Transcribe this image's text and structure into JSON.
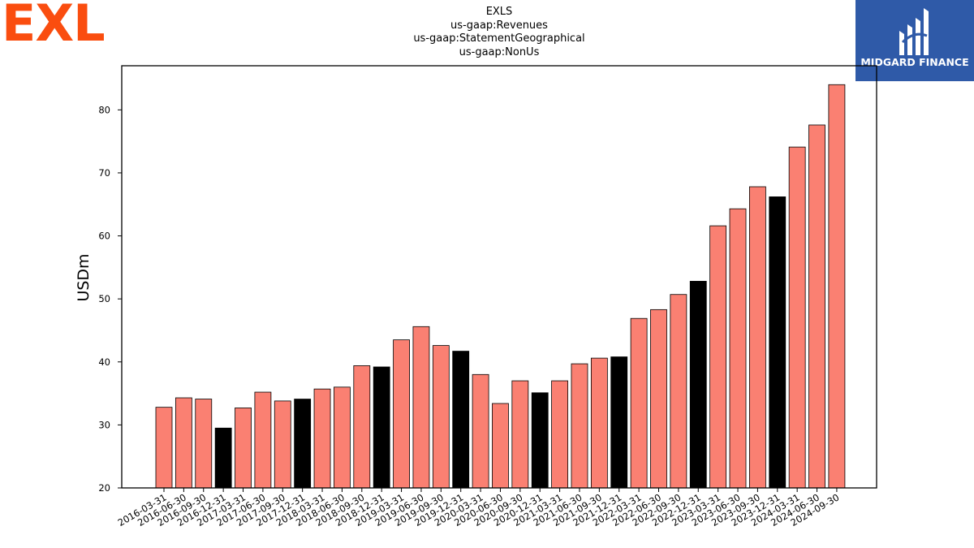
{
  "logos": {
    "left_text": "EXL",
    "right_text": "MIDGARD FINANCE"
  },
  "title_lines": [
    "EXLS",
    "us-gaap:Revenues",
    "us-gaap:StatementGeographical",
    "us-gaap:NonUs"
  ],
  "colors": {
    "bar": "#fa8072",
    "bar_q4": "#000000",
    "edge": "#000000"
  },
  "chart_data": {
    "type": "bar",
    "title": "EXLS\nus-gaap:Revenues\nus-gaap:StatementGeographical\nus-gaap:NonUs",
    "xlabel": "",
    "ylabel": "USDm",
    "ylim": [
      20,
      87
    ],
    "yticks": [
      20,
      30,
      40,
      50,
      60,
      70,
      80
    ],
    "grid": false,
    "categories": [
      "2016-03-31",
      "2016-06-30",
      "2016-09-30",
      "2016-12-31",
      "2017-03-31",
      "2017-06-30",
      "2017-09-30",
      "2017-12-31",
      "2018-03-31",
      "2018-06-30",
      "2018-09-30",
      "2018-12-31",
      "2019-03-31",
      "2019-06-30",
      "2019-09-30",
      "2019-12-31",
      "2020-03-31",
      "2020-06-30",
      "2020-09-30",
      "2020-12-31",
      "2021-03-31",
      "2021-06-30",
      "2021-09-30",
      "2021-12-31",
      "2022-03-31",
      "2022-06-30",
      "2022-09-30",
      "2022-12-31",
      "2023-03-31",
      "2023-06-30",
      "2023-09-30",
      "2023-12-31",
      "2024-03-31",
      "2024-06-30",
      "2024-09-30"
    ],
    "values": [
      32.8,
      34.3,
      34.1,
      29.5,
      32.7,
      35.2,
      33.8,
      34.1,
      35.7,
      36.0,
      39.4,
      39.2,
      43.5,
      45.6,
      42.6,
      41.7,
      38.0,
      33.4,
      37.0,
      35.1,
      37.0,
      39.7,
      40.6,
      40.8,
      46.9,
      48.3,
      50.7,
      52.8,
      61.6,
      64.3,
      67.8,
      66.2,
      74.1,
      77.6,
      84.0
    ],
    "highlight_q4": true
  }
}
